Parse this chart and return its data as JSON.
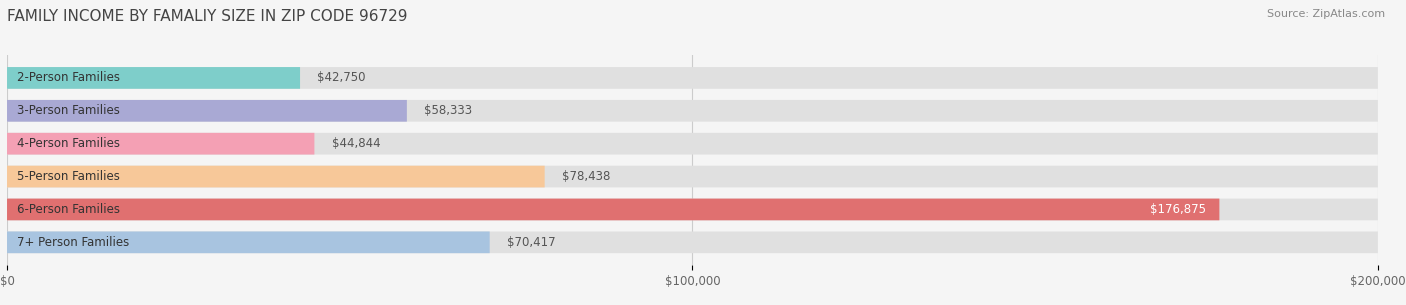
{
  "title": "FAMILY INCOME BY FAMALIY SIZE IN ZIP CODE 96729",
  "source": "Source: ZipAtlas.com",
  "categories": [
    "2-Person Families",
    "3-Person Families",
    "4-Person Families",
    "5-Person Families",
    "6-Person Families",
    "7+ Person Families"
  ],
  "values": [
    42750,
    58333,
    44844,
    78438,
    176875,
    70417
  ],
  "bar_colors": [
    "#7ececa",
    "#a9a9d4",
    "#f4a0b4",
    "#f7c899",
    "#e07070",
    "#a8c4e0"
  ],
  "bar_label_colors": [
    "#555555",
    "#555555",
    "#555555",
    "#555555",
    "#ffffff",
    "#555555"
  ],
  "value_labels": [
    "$42,750",
    "$58,333",
    "$44,844",
    "$78,438",
    "$176,875",
    "$70,417"
  ],
  "value_inside": [
    false,
    false,
    false,
    false,
    true,
    false
  ],
  "xlim": [
    0,
    200000
  ],
  "xticks": [
    0,
    100000,
    200000
  ],
  "xtick_labels": [
    "$0",
    "$100,000",
    "$200,000"
  ],
  "background_color": "#f5f5f5",
  "bar_background_color": "#e0e0e0",
  "bar_height": 0.65,
  "title_fontsize": 11,
  "label_fontsize": 8.5,
  "value_fontsize": 8.5,
  "source_fontsize": 8
}
